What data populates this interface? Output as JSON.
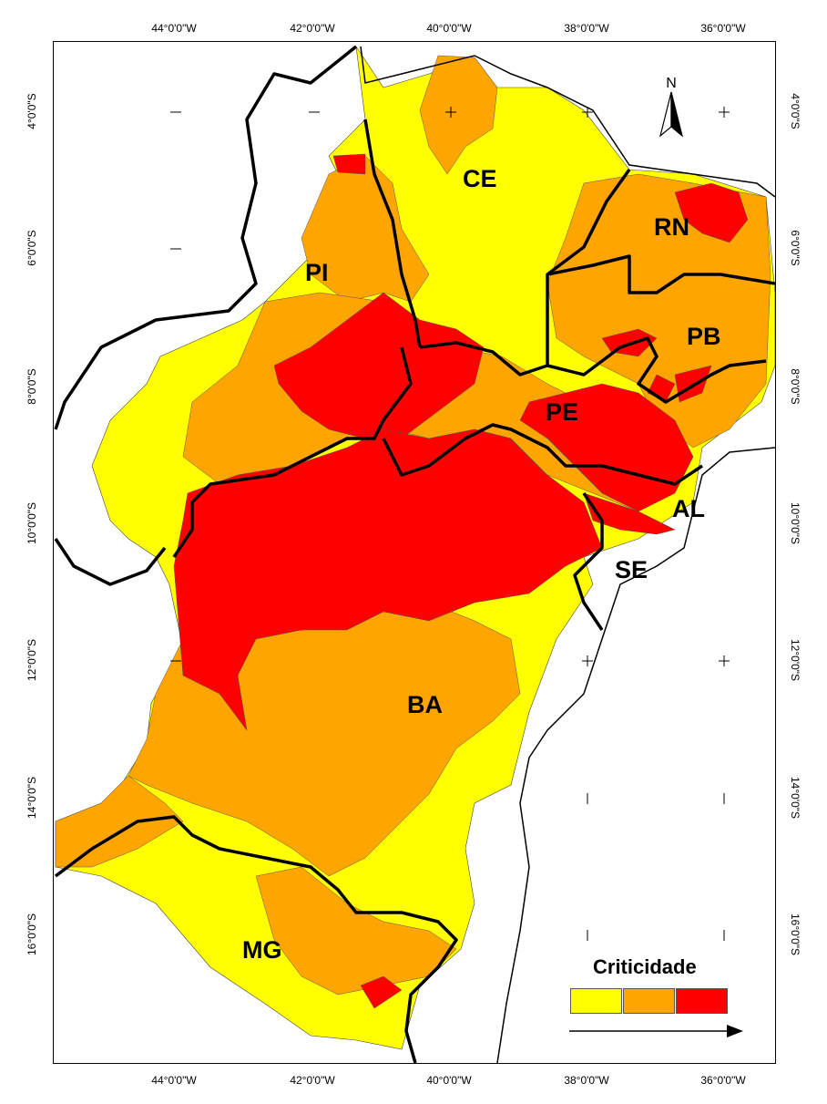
{
  "axes": {
    "longitude_labels": [
      "44°0'0\"W",
      "42°0'0\"W",
      "40°0'0\"W",
      "38°0'0\"W",
      "36°0'0\"W"
    ],
    "latitude_labels": [
      "4°0'0\"S",
      "6°0'0\"S",
      "8°0'0\"S",
      "10°0'0\"S",
      "12°0'0\"S",
      "14°0'0\"S",
      "16°0'0\"S"
    ]
  },
  "north_arrow": {
    "label": "N"
  },
  "states": {
    "ce": "CE",
    "rn": "RN",
    "pi": "PI",
    "pb": "PB",
    "pe": "PE",
    "al": "AL",
    "se": "SE",
    "ba": "BA",
    "mg": "MG"
  },
  "legend": {
    "title": "Criticidade",
    "classes": [
      {
        "color": "#ffff00"
      },
      {
        "color": "#ffa500"
      },
      {
        "color": "#ff0000"
      }
    ]
  },
  "colors": {
    "low": "#ffff00",
    "medium": "#ffa500",
    "high": "#ff0000",
    "border": "#000000"
  }
}
